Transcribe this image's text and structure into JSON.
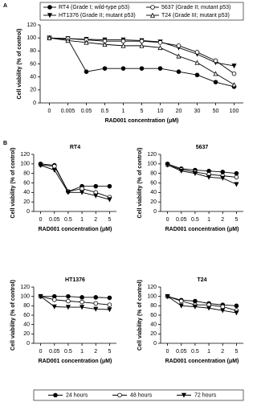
{
  "chart_data": [
    {
      "type": "line",
      "panel_label": "A",
      "xlabel": "RAD001 concentration (μM)",
      "ylabel": "Cell viability (% of control)",
      "categories": [
        "0",
        "0.005",
        "0.05",
        "0.5",
        "1",
        "5",
        "10",
        "20",
        "30",
        "50",
        "100"
      ],
      "ylim": [
        0,
        120
      ],
      "yticks": [
        0,
        20,
        40,
        60,
        80,
        100,
        120
      ],
      "series": [
        {
          "name": "RT4 (Grade I; wild-type p53)",
          "color": "#000000",
          "marker": "circle-filled",
          "values": [
            100,
            98,
            48,
            53,
            53,
            53,
            53,
            48,
            43,
            32,
            25
          ]
        },
        {
          "name": "HT1376 (Grade II; mutant p53)",
          "color": "#000000",
          "marker": "triangle-down-filled",
          "values": [
            100,
            99,
            98,
            97,
            97,
            96,
            94,
            85,
            75,
            62,
            57
          ]
        },
        {
          "name": "5637 (Grade II; mutant p53)",
          "color": "#000000",
          "marker": "circle-open",
          "values": [
            100,
            99,
            97,
            95,
            95,
            95,
            93,
            88,
            78,
            65,
            45
          ]
        },
        {
          "name": "T24 (Grade III; mutant p53)",
          "color": "#000000",
          "marker": "triangle-up-open",
          "values": [
            100,
            96,
            93,
            90,
            88,
            88,
            85,
            72,
            62,
            45,
            28
          ]
        }
      ]
    },
    {
      "type": "line",
      "panel_label": "B",
      "title": "RT4",
      "xlabel": "RAD001 concentration (μM)",
      "ylabel": "Cell viability (% of control)",
      "categories": [
        "0",
        "0.05",
        "0.5",
        "1",
        "2",
        "5"
      ],
      "ylim": [
        0,
        120
      ],
      "yticks": [
        0,
        20,
        40,
        60,
        80,
        100,
        120
      ],
      "series": [
        {
          "name": "24 hours",
          "color": "#000000",
          "marker": "circle-filled",
          "values": [
            100,
            97,
            42,
            53,
            53,
            53
          ]
        },
        {
          "name": "48 hours",
          "color": "#000000",
          "marker": "circle-open",
          "values": [
            98,
            95,
            42,
            48,
            40,
            30
          ]
        },
        {
          "name": "72 hours",
          "color": "#000000",
          "marker": "triangle-down-filled",
          "values": [
            97,
            87,
            40,
            40,
            33,
            25
          ]
        }
      ]
    },
    {
      "type": "line",
      "title": "5637",
      "xlabel": "RAD001 concentration (μM)",
      "ylabel": "Cell viability (% of control)",
      "categories": [
        "0",
        "0.05",
        "0.5",
        "1",
        "2",
        "5"
      ],
      "ylim": [
        0,
        120
      ],
      "yticks": [
        0,
        20,
        40,
        60,
        80,
        100,
        120
      ],
      "series": [
        {
          "name": "24 hours",
          "color": "#000000",
          "marker": "circle-filled",
          "values": [
            100,
            90,
            87,
            85,
            83,
            80
          ]
        },
        {
          "name": "48 hours",
          "color": "#000000",
          "marker": "circle-open",
          "values": [
            98,
            88,
            83,
            78,
            75,
            72
          ]
        },
        {
          "name": "72 hours",
          "color": "#000000",
          "marker": "triangle-down-filled",
          "values": [
            98,
            85,
            80,
            72,
            70,
            57
          ]
        }
      ]
    },
    {
      "type": "line",
      "title": "HT1376",
      "xlabel": "RAD001 concentration (μM)",
      "ylabel": "Cell viability (% of control)",
      "categories": [
        "0",
        "0.05",
        "0.5",
        "1",
        "2",
        "5"
      ],
      "ylim": [
        0,
        120
      ],
      "yticks": [
        0,
        20,
        40,
        60,
        80,
        100,
        120
      ],
      "series": [
        {
          "name": "24 hours",
          "color": "#000000",
          "marker": "circle-filled",
          "values": [
            100,
            100,
            100,
            98,
            98,
            97
          ]
        },
        {
          "name": "48 hours",
          "color": "#000000",
          "marker": "circle-open",
          "values": [
            100,
            93,
            90,
            88,
            85,
            82
          ]
        },
        {
          "name": "72 hours",
          "color": "#000000",
          "marker": "triangle-down-filled",
          "values": [
            100,
            78,
            77,
            77,
            73,
            72
          ]
        }
      ]
    },
    {
      "type": "line",
      "title": "T24",
      "xlabel": "RAD001 concentration (μM)",
      "ylabel": "Cell viability (% of control)",
      "categories": [
        "0",
        "0.05",
        "0.5",
        "1",
        "2",
        "5"
      ],
      "ylim": [
        0,
        120
      ],
      "yticks": [
        0,
        20,
        40,
        60,
        80,
        100,
        120
      ],
      "series": [
        {
          "name": "24 hours",
          "color": "#000000",
          "marker": "circle-filled",
          "values": [
            100,
            92,
            90,
            85,
            82,
            80
          ]
        },
        {
          "name": "48 hours",
          "color": "#000000",
          "marker": "circle-open",
          "values": [
            100,
            90,
            82,
            82,
            78,
            70
          ]
        },
        {
          "name": "72 hours",
          "color": "#000000",
          "marker": "triangle-down-filled",
          "values": [
            100,
            80,
            78,
            75,
            70,
            65
          ]
        }
      ]
    }
  ]
}
